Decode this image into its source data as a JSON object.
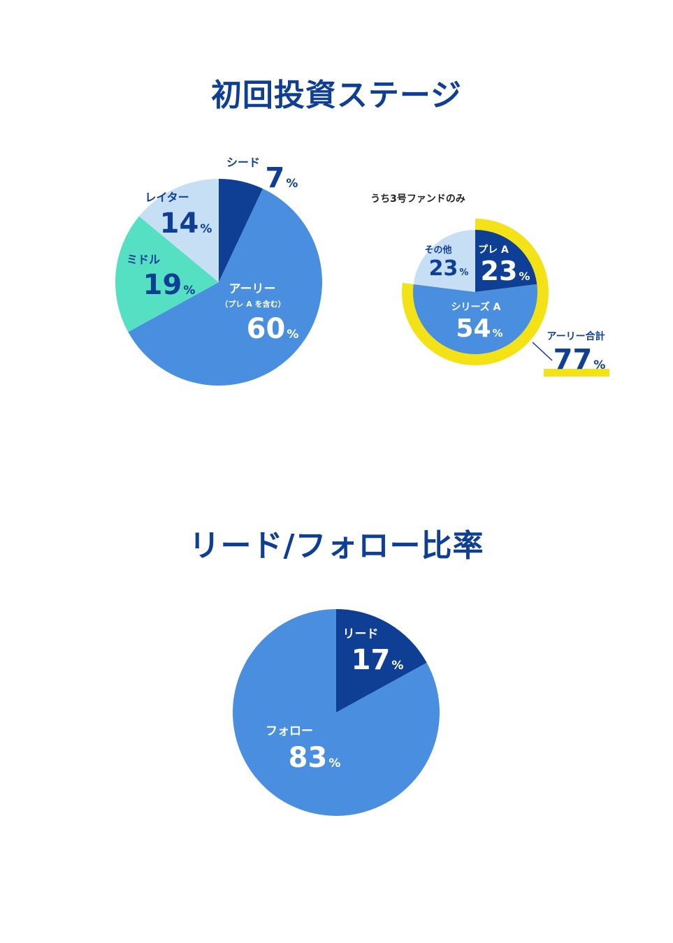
{
  "colors": {
    "navy": "#0E3F94",
    "blue": "#4A8FDF",
    "light_blue": "#C7DFF4",
    "mint": "#55E0C3",
    "yellow": "#F4E219",
    "white": "#FFFFFF"
  },
  "section1": {
    "title": "初回投資ステージ"
  },
  "section2": {
    "title": "リード/フォロー比率"
  },
  "chart_data": [
    {
      "type": "pie",
      "title": "初回投資ステージ",
      "slices": [
        {
          "label": "シード",
          "value": 7,
          "unit": "%",
          "color": "#0E3F94"
        },
        {
          "label": "アーリー",
          "sublabel": "（プレ A を含む）",
          "value": 60,
          "unit": "%",
          "color": "#4A8FDF"
        },
        {
          "label": "ミドル",
          "value": 19,
          "unit": "%",
          "color": "#55E0C3"
        },
        {
          "label": "レイター",
          "value": 14,
          "unit": "%",
          "color": "#C7DFF4"
        }
      ]
    },
    {
      "type": "pie",
      "caption": "うち3号ファンドのみ",
      "slices": [
        {
          "label": "プレ A",
          "value": 23,
          "unit": "%",
          "color": "#0E3F94"
        },
        {
          "label": "シリーズ A",
          "value": 54,
          "unit": "%",
          "color": "#4A8FDF"
        },
        {
          "label": "その他",
          "value": 23,
          "unit": "%",
          "color": "#C7DFF4"
        }
      ],
      "highlight": {
        "label": "アーリー合計",
        "value": 77,
        "unit": "%",
        "color": "#F4E219"
      }
    },
    {
      "type": "pie",
      "title": "リード/フォロー比率",
      "slices": [
        {
          "label": "リード",
          "value": 17,
          "unit": "%",
          "color": "#0E3F94"
        },
        {
          "label": "フォロー",
          "value": 83,
          "unit": "%",
          "color": "#4A8FDF"
        }
      ]
    }
  ]
}
